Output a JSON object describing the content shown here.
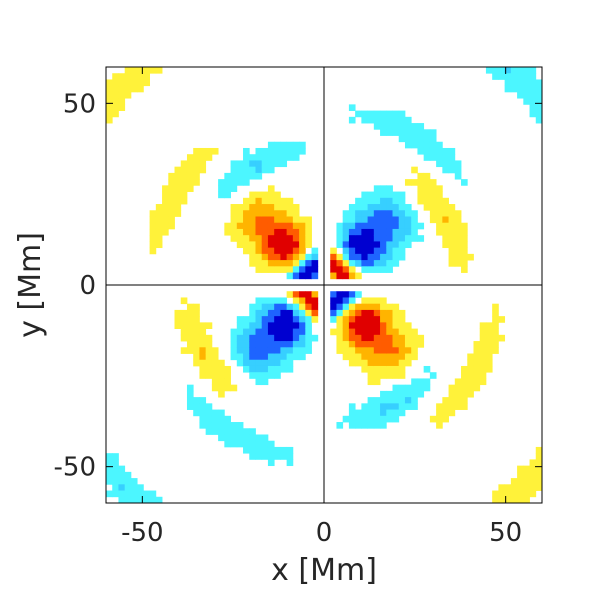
{
  "chart_data": {
    "type": "heatmap",
    "title": "",
    "xlabel": "x [Mm]",
    "ylabel": "y [Mm]",
    "xlim": [
      -60,
      60
    ],
    "ylim": [
      -60,
      60
    ],
    "xticks": [
      -50,
      0,
      50
    ],
    "yticks": [
      -50,
      0,
      50
    ],
    "xtick_labels": [
      "-50",
      "0",
      "50"
    ],
    "ytick_labels": [
      "-50",
      "0",
      "50"
    ],
    "grid": false,
    "crosshair_lines": [
      {
        "axis": "x",
        "value": 0
      },
      {
        "axis": "y",
        "value": 0
      }
    ],
    "grid_cells": 70,
    "colormap": "jet-like diverging",
    "colors": {
      "deep_blue": "#0000d0",
      "blue": "#1e64ff",
      "light_blue": "#37cfff",
      "cyan": "#4cf6ff",
      "white": "#ffffff",
      "yellow": "#fff23a",
      "orange": "#ffb400",
      "red_orange": "#ff5c00",
      "red": "#e00000"
    },
    "pattern": {
      "description_scale_Mm": {
        "inner_lobe_center": 6,
        "inner_lobe_width": 3.6,
        "diagonal_lobe_center": 15,
        "diagonal_lobe_width": 7,
        "ring_center": 38,
        "ring_width": 4
      },
      "sign_map": {
        "upper_left": "positive",
        "upper_right": "negative",
        "lower_left": "negative",
        "lower_right": "positive",
        "inner_upper_left": "negative",
        "inner_upper_right": "positive",
        "inner_lower_left": "positive",
        "inner_lower_right": "negative"
      }
    }
  }
}
